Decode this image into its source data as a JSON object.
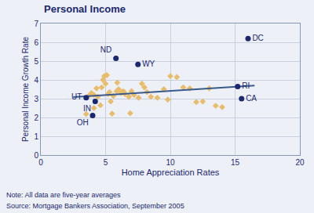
{
  "chart_data": {
    "type": "scatter",
    "title": "Personal Income",
    "xlabel": "Home Appreciation Rates",
    "ylabel": "Personal Income Growth Rate",
    "note": "Note: All data are five-year averages",
    "source": "Source: Mortgage Bankers Association, September 2005",
    "xlim": [
      0,
      20
    ],
    "ylim": [
      0,
      7
    ],
    "xticks": [
      0,
      5,
      10,
      15,
      20
    ],
    "yticks": [
      0,
      1,
      2,
      3,
      4,
      5,
      6,
      7
    ],
    "grid": true,
    "series": [
      {
        "type": "scatter",
        "marker": "diamond",
        "color": "#e8bc6a",
        "x": [
          3.7,
          3.9,
          4.1,
          4.4,
          4.3,
          4.7,
          4.8,
          4.9,
          5.0,
          5.1,
          5.2,
          5.3,
          5.4,
          5.5,
          5.6,
          5.85,
          6.0,
          6.2,
          6.3,
          6.5,
          6.8,
          7.0,
          7.2,
          7.55,
          7.8,
          8.0,
          8.5,
          9.0,
          9.5,
          10.0,
          10.5,
          11.0,
          11.5,
          12.0,
          12.5,
          13.0,
          13.5,
          14.0,
          3.5,
          4.1,
          4.6,
          5.9,
          6.4,
          6.9,
          8.2,
          9.8
        ],
        "values": [
          3.15,
          3.3,
          3.2,
          3.1,
          3.55,
          3.6,
          4.0,
          4.2,
          3.8,
          4.25,
          3.25,
          3.35,
          2.85,
          2.2,
          3.15,
          3.4,
          3.5,
          3.3,
          3.38,
          3.25,
          3.1,
          3.4,
          3.2,
          3.05,
          3.8,
          3.6,
          3.1,
          3.05,
          3.5,
          4.2,
          4.15,
          3.6,
          3.55,
          2.82,
          2.85,
          3.55,
          2.62,
          2.55,
          2.18,
          2.5,
          2.65,
          3.85,
          3.38,
          2.22,
          3.35,
          2.95
        ]
      },
      {
        "type": "line",
        "line_style": "solid",
        "color": "#3a5a8c",
        "x": [
          2.5,
          16.5
        ],
        "values": [
          3.08,
          3.7
        ]
      },
      {
        "type": "scatter",
        "marker": "circle",
        "color": "#1a2870",
        "x": [
          16.0,
          5.8,
          7.5,
          3.5,
          4.2,
          4.0,
          15.2,
          15.5
        ],
        "values": [
          6.2,
          5.15,
          4.82,
          3.05,
          2.85,
          2.1,
          3.65,
          3.0
        ],
        "labels": [
          "DC",
          "ND",
          "WY",
          "UT",
          "IN",
          "OH",
          "RI",
          "CA"
        ]
      }
    ]
  }
}
